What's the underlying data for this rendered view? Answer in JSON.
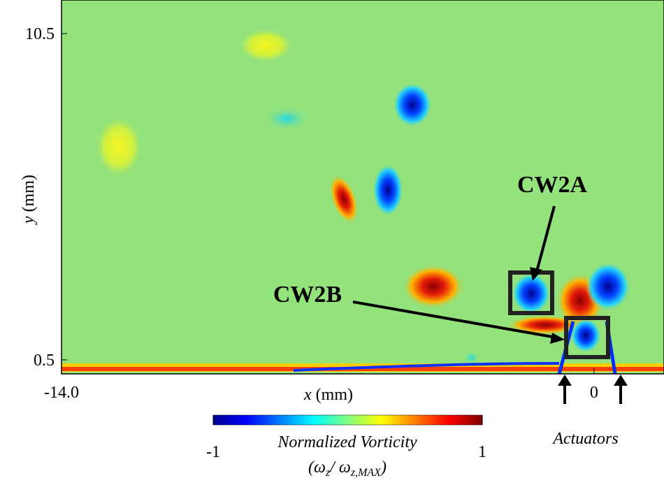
{
  "chart_data": {
    "type": "heatmap",
    "xlabel": {
      "var": "x",
      "unit": "(mm)"
    },
    "ylabel": {
      "var": "y",
      "unit": "(mm)"
    },
    "xlim": [
      -14.0,
      1.84
    ],
    "xticks": [
      {
        "value": -14.0,
        "label": "-14.0"
      },
      0
    ],
    "ylim": [
      0.07,
      11.53
    ],
    "yticks": [
      0.5,
      10.5
    ],
    "colorbar": {
      "range": [
        -1,
        1
      ],
      "ticks": [
        -1,
        1
      ],
      "label": "Normalized Vorticity",
      "formula": [
        "(ω",
        "z",
        "/ ω",
        "z,MAX",
        ")"
      ]
    },
    "annotations": [
      "CW2A",
      "CW2B",
      "Actuators"
    ]
  }
}
